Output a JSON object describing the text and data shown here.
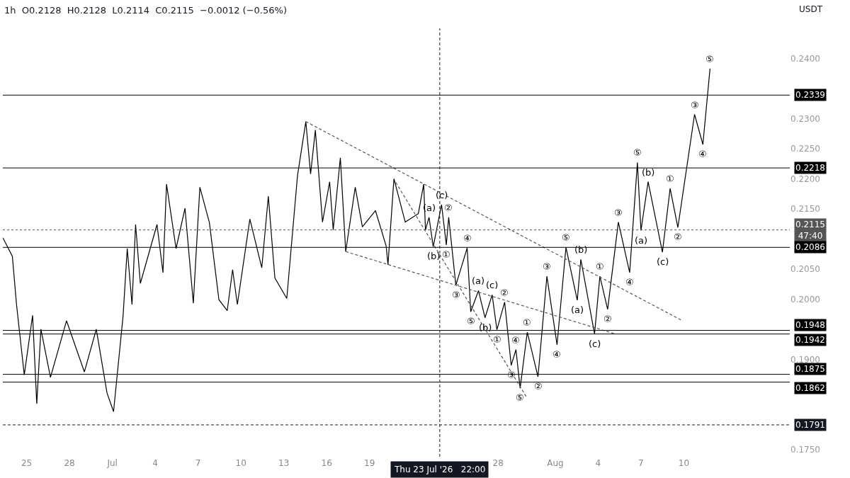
{
  "chart_data": {
    "type": "line",
    "title": "1h  O0.2128  H0.2128  L0.2114  C0.2115  −0.0012 (−0.56%)",
    "xlim": [
      "2026-06-23T08:00",
      "2026-08-17T10:00"
    ],
    "xticks": [
      {
        "value": "2026-06-25",
        "label": "25"
      },
      {
        "value": "2026-06-28",
        "label": "28"
      },
      {
        "value": "2026-07-01",
        "label": "Jul"
      },
      {
        "value": "2026-07-04",
        "label": "4"
      },
      {
        "value": "2026-07-07",
        "label": "7"
      },
      {
        "value": "2026-07-10",
        "label": "10"
      },
      {
        "value": "2026-07-13",
        "label": "13"
      },
      {
        "value": "2026-07-16",
        "label": "16"
      },
      {
        "value": "2026-07-19",
        "label": "19"
      },
      {
        "value": "2026-07-28",
        "label": "28"
      },
      {
        "value": "2026-08-01",
        "label": "Aug"
      },
      {
        "value": "2026-08-04",
        "label": "4"
      },
      {
        "value": "2026-08-07",
        "label": "7"
      },
      {
        "value": "2026-08-10",
        "label": "10"
      }
    ],
    "ylim": [
      0.1738,
      0.245
    ],
    "yticks": [
      {
        "value": 0.175,
        "label": "0.1750"
      },
      {
        "value": 0.19,
        "label": "0.1900"
      },
      {
        "value": 0.2,
        "label": "0.2000"
      },
      {
        "value": 0.205,
        "label": "0.2050"
      },
      {
        "value": 0.215,
        "label": "0.2150"
      },
      {
        "value": 0.22,
        "label": "0.2200"
      },
      {
        "value": 0.225,
        "label": "0.2250"
      },
      {
        "value": 0.23,
        "label": "0.2300"
      },
      {
        "value": 0.24,
        "label": "0.2400"
      }
    ],
    "series": [
      {
        "color": "#000000",
        "x": [
          "2026-06-23T08:00",
          "2026-06-24T00:00",
          "2026-06-24T07:00",
          "2026-06-24T20:00",
          "2026-06-25T10:00",
          "2026-06-25T17:00",
          "2026-06-26T00:00",
          "2026-06-26T16:00",
          "2026-06-27T19:00",
          "2026-06-29T01:00",
          "2026-06-29T21:00",
          "2026-06-30T15:00",
          "2026-07-01T02:00",
          "2026-07-01T18:00",
          "2026-07-02T01:00",
          "2026-07-02T09:00",
          "2026-07-02T15:00",
          "2026-07-02T23:00",
          "2026-07-04T03:00",
          "2026-07-04T13:00",
          "2026-07-04T19:00",
          "2026-07-05T11:00",
          "2026-07-06T02:00",
          "2026-07-06T16:00",
          "2026-07-07T03:00",
          "2026-07-07T19:00",
          "2026-07-08T11:00",
          "2026-07-09T01:00",
          "2026-07-09T10:00",
          "2026-07-09T18:00",
          "2026-07-10T15:00",
          "2026-07-11T11:00",
          "2026-07-11T22:00",
          "2026-07-12T09:00",
          "2026-07-13T05:00",
          "2026-07-13T23:00",
          "2026-07-14T13:00",
          "2026-07-14T21:00",
          "2026-07-15T05:00",
          "2026-07-15T17:00",
          "2026-07-16T05:00",
          "2026-07-16T11:00",
          "2026-07-16T23:00",
          "2026-07-17T08:00",
          "2026-07-18T00:00",
          "2026-07-18T12:00",
          "2026-07-19T10:00",
          "2026-07-20T04:00",
          "2026-07-20T07:00",
          "2026-07-20T17:00",
          "2026-07-21T12:00",
          "2026-07-22T10:00",
          "2026-07-22T19:00",
          "2026-07-22T22:00"
        ],
        "values": [
          0.2102,
          0.2071,
          0.1991,
          0.1874,
          0.1973,
          0.1826,
          0.195,
          0.187,
          0.1964,
          0.1879,
          0.195,
          0.1844,
          0.1813,
          0.1972,
          0.2084,
          0.1991,
          0.2124,
          0.2026,
          0.2124,
          0.2044,
          0.2191,
          0.2084,
          0.2151,
          0.1993,
          0.2186,
          0.2127,
          0.1999,
          0.1981,
          0.2049,
          0.1991,
          0.2133,
          0.2052,
          0.2171,
          0.2035,
          0.2001,
          0.2205,
          0.2295,
          0.2208,
          0.2281,
          0.2128,
          0.2195,
          0.2115,
          0.2235,
          0.2079,
          0.2186,
          0.212,
          0.2147,
          0.2088,
          0.2057,
          0.22,
          0.2128,
          0.2142,
          0.2191,
          0.2115
        ]
      },
      {
        "color": "#000000",
        "x": [
          "2026-07-22T22:00",
          "2026-07-23T04:00",
          "2026-07-23T11:00",
          "2026-07-24T01:00",
          "2026-07-24T09:00",
          "2026-07-24T13:00",
          "2026-07-25T01:00",
          "2026-07-25T20:00",
          "2026-07-26T02:00",
          "2026-07-26T15:00",
          "2026-07-27T02:00",
          "2026-07-27T14:00",
          "2026-07-27T22:00",
          "2026-07-28T11:00",
          "2026-07-28T22:00",
          "2026-07-29T06:00",
          "2026-07-29T13:00",
          "2026-07-30T01:00",
          "2026-07-30T19:00",
          "2026-07-31T10:00",
          "2026-08-01T03:00",
          "2026-08-01T18:00",
          "2026-08-02T13:00",
          "2026-08-02T19:00",
          "2026-08-03T18:00",
          "2026-08-04T03:00",
          "2026-08-04T16:00",
          "2026-08-05T10:00",
          "2026-08-06T05:00",
          "2026-08-06T18:00",
          "2026-08-07T00:00",
          "2026-08-07T12:00",
          "2026-08-08T12:00",
          "2026-08-09T01:00",
          "2026-08-09T14:00",
          "2026-08-10T18:00",
          "2026-08-11T08:00",
          "2026-08-11T20:00"
        ],
        "values": [
          0.2115,
          0.2136,
          0.2087,
          0.2157,
          0.209,
          0.2136,
          0.2023,
          0.2085,
          0.1979,
          0.2014,
          0.1969,
          0.2007,
          0.1949,
          0.1995,
          0.189,
          0.1916,
          0.1852,
          0.1945,
          0.1871,
          0.2038,
          0.1924,
          0.2086,
          0.1998,
          0.2066,
          0.1942,
          0.2038,
          0.1983,
          0.2128,
          0.2044,
          0.2227,
          0.2114,
          0.2195,
          0.2078,
          0.2184,
          0.2119,
          0.2307,
          0.2257,
          0.2383
        ]
      },
      {
        "color": "#555555",
        "line_style": "dashed",
        "x": [
          "2026-07-14T13:00",
          "2026-08-09T20:00"
        ],
        "values": [
          0.2295,
          0.1965
        ]
      },
      {
        "color": "#555555",
        "line_style": "dashed",
        "x": [
          "2026-07-17T08:00",
          "2026-08-05T05:00"
        ],
        "values": [
          0.2079,
          0.1942
        ]
      },
      {
        "color": "#555555",
        "line_style": "dashed",
        "x": [
          "2026-07-20T20:00",
          "2026-07-30T01:00"
        ],
        "values": [
          0.2194,
          0.1835
        ]
      }
    ],
    "ref_lines": [
      {
        "axis": "y",
        "value": 0.2339,
        "label": "0.2339",
        "color": "#000000",
        "line_style": "solid"
      },
      {
        "axis": "y",
        "value": 0.2218,
        "label": "0.2218",
        "color": "#000000",
        "line_style": "solid"
      },
      {
        "axis": "y",
        "value": 0.2115,
        "label": "0.2115\n47:40",
        "color": "#555555",
        "line_style": "dotted"
      },
      {
        "axis": "y",
        "value": 0.2086,
        "label": "0.2086",
        "color": "#000000",
        "line_style": "solid"
      },
      {
        "axis": "y",
        "value": 0.1948,
        "label": "0.1948",
        "color": "#000000",
        "line_style": "solid"
      },
      {
        "axis": "y",
        "value": 0.1942,
        "label": "0.1942",
        "color": "#000000",
        "line_style": "solid"
      },
      {
        "axis": "y",
        "value": 0.1875,
        "label": "0.1875",
        "color": "#000000",
        "line_style": "solid"
      },
      {
        "axis": "y",
        "value": 0.1862,
        "label": "0.1862",
        "color": "#000000",
        "line_style": "solid"
      },
      {
        "axis": "y",
        "value": 0.1791,
        "label": "0.1791",
        "color": "#131722",
        "line_style": "dashed"
      },
      {
        "axis": "x",
        "value": "2026-07-23T22:00",
        "label": "Thu 23 Jul '26   22:00",
        "color": "#131722",
        "line_style": "dashed"
      }
    ],
    "annotations": [
      "USDT",
      {
        "text": "(a)",
        "x": "2026-07-23T04:00",
        "y": 0.2136
      },
      {
        "text": "(b)",
        "x": "2026-07-23T11:00",
        "y": 0.2087
      },
      {
        "text": "(c)",
        "x": "2026-07-24T01:00",
        "y": 0.2157
      },
      {
        "text": "①",
        "x": "2026-07-24T09:00",
        "y": 0.209
      },
      {
        "text": "②",
        "x": "2026-07-24T13:00",
        "y": 0.2136
      },
      {
        "text": "③",
        "x": "2026-07-25T01:00",
        "y": 0.2023
      },
      {
        "text": "④",
        "x": "2026-07-25T20:00",
        "y": 0.2085
      },
      {
        "text": "⑤",
        "x": "2026-07-26T02:00",
        "y": 0.1979
      },
      {
        "text": "(a)",
        "x": "2026-07-26T15:00",
        "y": 0.2014
      },
      {
        "text": "(b)",
        "x": "2026-07-27T02:00",
        "y": 0.1969
      },
      {
        "text": "(c)",
        "x": "2026-07-27T14:00",
        "y": 0.2007
      },
      {
        "text": "①",
        "x": "2026-07-27T22:00",
        "y": 0.1949
      },
      {
        "text": "②",
        "x": "2026-07-28T11:00",
        "y": 0.1995
      },
      {
        "text": "③",
        "x": "2026-07-28T22:00",
        "y": 0.189
      },
      {
        "text": "④",
        "x": "2026-07-29T06:00",
        "y": 0.1916
      },
      {
        "text": "⑤",
        "x": "2026-07-29T13:00",
        "y": 0.1852
      },
      {
        "text": "①",
        "x": "2026-07-30T01:00",
        "y": 0.1945
      },
      {
        "text": "②",
        "x": "2026-07-30T19:00",
        "y": 0.1871
      },
      {
        "text": "③",
        "x": "2026-07-31T10:00",
        "y": 0.2038
      },
      {
        "text": "④",
        "x": "2026-08-01T03:00",
        "y": 0.1924
      },
      {
        "text": "⑤",
        "x": "2026-08-01T18:00",
        "y": 0.2086
      },
      {
        "text": "(a)",
        "x": "2026-08-02T13:00",
        "y": 0.1998
      },
      {
        "text": "(b)",
        "x": "2026-08-02T19:00",
        "y": 0.2066
      },
      {
        "text": "(c)",
        "x": "2026-08-03T18:00",
        "y": 0.1942
      },
      {
        "text": "①",
        "x": "2026-08-04T03:00",
        "y": 0.2038
      },
      {
        "text": "②",
        "x": "2026-08-04T16:00",
        "y": 0.1983
      },
      {
        "text": "③",
        "x": "2026-08-05T10:00",
        "y": 0.2128
      },
      {
        "text": "④",
        "x": "2026-08-06T05:00",
        "y": 0.2044
      },
      {
        "text": "⑤",
        "x": "2026-08-06T18:00",
        "y": 0.2227
      },
      {
        "text": "(a)",
        "x": "2026-08-07T00:00",
        "y": 0.2114
      },
      {
        "text": "(b)",
        "x": "2026-08-07T12:00",
        "y": 0.2195
      },
      {
        "text": "(c)",
        "x": "2026-08-08T12:00",
        "y": 0.2078
      },
      {
        "text": "①",
        "x": "2026-08-09T01:00",
        "y": 0.2184
      },
      {
        "text": "②",
        "x": "2026-08-09T14:00",
        "y": 0.2119
      },
      {
        "text": "③",
        "x": "2026-08-10T18:00",
        "y": 0.2307
      },
      {
        "text": "④",
        "x": "2026-08-11T08:00",
        "y": 0.2257
      },
      {
        "text": "⑤",
        "x": "2026-08-11T20:00",
        "y": 0.2383
      }
    ]
  }
}
